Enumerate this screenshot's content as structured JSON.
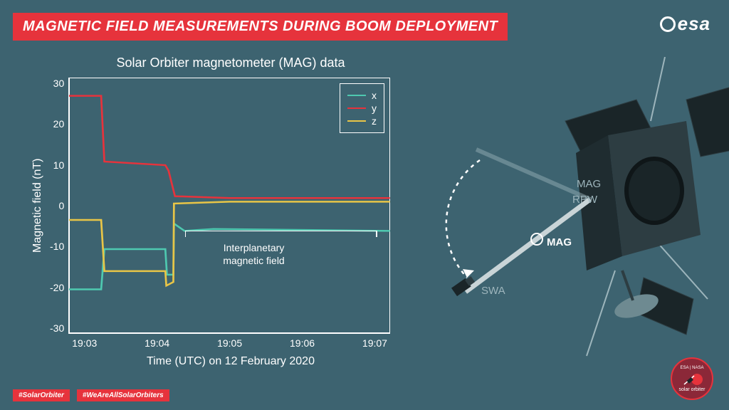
{
  "title": "MAGNETIC FIELD MEASUREMENTS DURING BOOM DEPLOYMENT",
  "logo_text": "esa",
  "chart": {
    "title": "Solar Orbiter magnetometer (MAG) data",
    "ylabel": "Magnetic field (nT)",
    "xlabel": "Time (UTC) on 12 February 2020",
    "ylim": [
      -35,
      35
    ],
    "yticks": [
      "30",
      "20",
      "10",
      "0",
      "-10",
      "-20",
      "-30"
    ],
    "xticks": [
      "19:03",
      "19:04",
      "19:05",
      "19:06",
      "19:07"
    ],
    "legend": [
      {
        "label": "x",
        "color": "#4ec9b0"
      },
      {
        "label": "y",
        "color": "#e6333c"
      },
      {
        "label": "z",
        "color": "#e8c547"
      }
    ],
    "annotation": "Interplanetary\nmagnetic field",
    "series": {
      "x": {
        "color": "#4ec9b0",
        "points": [
          [
            0,
            -23
          ],
          [
            0.1,
            -23
          ],
          [
            0.11,
            -12
          ],
          [
            0.3,
            -12
          ],
          [
            0.305,
            -19
          ],
          [
            0.325,
            -19
          ],
          [
            0.327,
            -5
          ],
          [
            0.36,
            -7
          ],
          [
            0.45,
            -6.5
          ],
          [
            1.0,
            -7
          ]
        ]
      },
      "y": {
        "color": "#e6333c",
        "points": [
          [
            0,
            30
          ],
          [
            0.1,
            30
          ],
          [
            0.11,
            12
          ],
          [
            0.3,
            11
          ],
          [
            0.31,
            9.5
          ],
          [
            0.33,
            2.5
          ],
          [
            0.5,
            2
          ],
          [
            1.0,
            2
          ]
        ]
      },
      "z": {
        "color": "#e8c547",
        "points": [
          [
            0,
            -4
          ],
          [
            0.1,
            -4
          ],
          [
            0.11,
            -18
          ],
          [
            0.3,
            -18
          ],
          [
            0.303,
            -22
          ],
          [
            0.325,
            -21
          ],
          [
            0.327,
            0.5
          ],
          [
            0.5,
            1
          ],
          [
            1.0,
            1
          ]
        ]
      }
    },
    "line_width": 2.5,
    "background_color": "#3d6370",
    "axis_color": "#ffffff",
    "text_color": "#ffffff"
  },
  "spacecraft_labels": {
    "mag_top": "MAG",
    "rpw": "RPW",
    "mag_main": "MAG",
    "swa": "SWA"
  },
  "hashtags": [
    "#SolarOrbiter",
    "#WeAreAllSolarOrbiters"
  ],
  "badge": {
    "top": "ESA | NASA",
    "bottom": "solar orbiter"
  },
  "colors": {
    "bg": "#3d6370",
    "accent": "#e6333c",
    "text": "#ffffff",
    "faded": "#9db5bc"
  }
}
